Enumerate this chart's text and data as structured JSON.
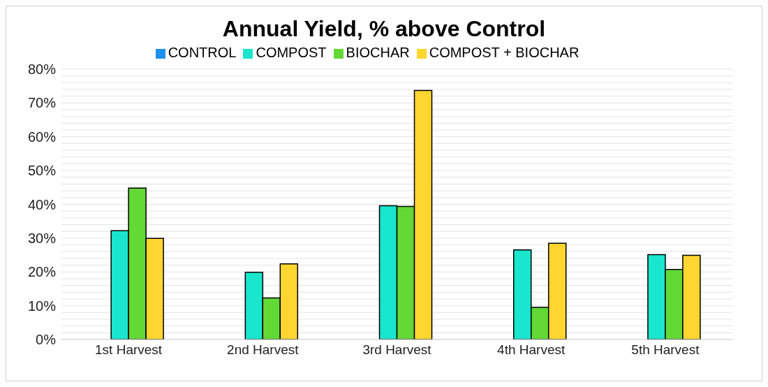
{
  "chart_data": {
    "type": "bar",
    "title": "Annual Yield, % above Control",
    "categories": [
      "1st Harvest",
      "2nd Harvest",
      "3rd Harvest",
      "4th Harvest",
      "5th Harvest"
    ],
    "series": [
      {
        "name": "CONTROL",
        "color": "#1e90f0",
        "values": [
          0,
          0,
          0,
          0,
          0
        ]
      },
      {
        "name": "COMPOST",
        "color": "#19e6cd",
        "values": [
          32.2,
          19.9,
          39.6,
          26.5,
          25.1
        ]
      },
      {
        "name": "BIOCHAR",
        "color": "#62d936",
        "values": [
          44.8,
          12.3,
          39.4,
          9.5,
          20.7
        ]
      },
      {
        "name": "COMPOST + BIOCHAR",
        "color": "#ffd630",
        "values": [
          29.9,
          22.4,
          73.7,
          28.5,
          24.9
        ]
      }
    ],
    "ylim": [
      0,
      80
    ],
    "yticks": [
      {
        "value": 0,
        "label": "0%"
      },
      {
        "value": 2,
        "label": null
      },
      {
        "value": 4,
        "label": null
      },
      {
        "value": 6,
        "label": null
      },
      {
        "value": 8,
        "label": null
      },
      {
        "value": 10,
        "label": "10%"
      },
      {
        "value": 12,
        "label": null
      },
      {
        "value": 14,
        "label": null
      },
      {
        "value": 16,
        "label": null
      },
      {
        "value": 18,
        "label": null
      },
      {
        "value": 20,
        "label": "20%"
      },
      {
        "value": 22,
        "label": null
      },
      {
        "value": 24,
        "label": null
      },
      {
        "value": 26,
        "label": null
      },
      {
        "value": 28,
        "label": null
      },
      {
        "value": 30,
        "label": "30%"
      },
      {
        "value": 32,
        "label": null
      },
      {
        "value": 34,
        "label": null
      },
      {
        "value": 36,
        "label": null
      },
      {
        "value": 38,
        "label": null
      },
      {
        "value": 40,
        "label": "40%"
      },
      {
        "value": 42,
        "label": null
      },
      {
        "value": 44,
        "label": null
      },
      {
        "value": 46,
        "label": null
      },
      {
        "value": 48,
        "label": null
      },
      {
        "value": 50,
        "label": "50%"
      },
      {
        "value": 52,
        "label": null
      },
      {
        "value": 54,
        "label": null
      },
      {
        "value": 56,
        "label": null
      },
      {
        "value": 58,
        "label": null
      },
      {
        "value": 60,
        "label": "60%"
      },
      {
        "value": 62,
        "label": null
      },
      {
        "value": 64,
        "label": null
      },
      {
        "value": 66,
        "label": null
      },
      {
        "value": 68,
        "label": null
      },
      {
        "value": 70,
        "label": "70%"
      },
      {
        "value": 72,
        "label": null
      },
      {
        "value": 74,
        "label": null
      },
      {
        "value": 76,
        "label": null
      },
      {
        "value": 78,
        "label": null
      },
      {
        "value": 80,
        "label": "80%"
      }
    ],
    "grid": "y",
    "legend": "top"
  }
}
